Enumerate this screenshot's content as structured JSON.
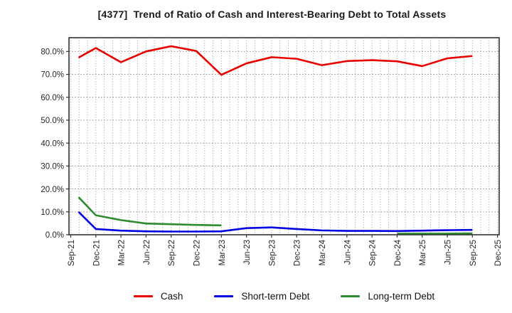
{
  "chart_data": {
    "type": "line",
    "title": "[4377]  Trend of Ratio of Cash and Interest-Bearing Debt to Total Assets",
    "x_tick_labels": [
      "Sep-21",
      "Dec-21",
      "Mar-22",
      "Jun-22",
      "Sep-22",
      "Dec-22",
      "Mar-23",
      "Jun-23",
      "Sep-23",
      "Dec-23",
      "Mar-24",
      "Jun-24",
      "Sep-24",
      "Dec-24",
      "Mar-25",
      "Jun-25",
      "Sep-25",
      "Dec-25"
    ],
    "y_tick_labels": [
      "0.0%",
      "10.0%",
      "20.0%",
      "30.0%",
      "40.0%",
      "50.0%",
      "60.0%",
      "70.0%",
      "80.0%"
    ],
    "y_tick_values": [
      0,
      10,
      20,
      30,
      40,
      50,
      60,
      70,
      80
    ],
    "ylim": [
      0,
      86
    ],
    "grid": {
      "horizontal": "10% steps dotted",
      "vertical": "monthly dotted"
    },
    "legend_position": "bottom",
    "axis_color": "#333333",
    "grid_color": "#8f8f8f",
    "series": [
      {
        "name": "Cash",
        "color": "#e80000",
        "values": [
          77.3,
          81.5,
          75.3,
          80.0,
          82.3,
          80.2,
          69.8,
          74.8,
          77.5,
          76.8,
          74.0,
          75.8,
          76.2,
          75.7,
          73.6,
          77.0,
          78.0
        ]
      },
      {
        "name": "Short-term Debt",
        "color": "#0000e0",
        "values": [
          10.0,
          2.5,
          1.8,
          1.5,
          1.4,
          1.4,
          1.5,
          2.9,
          3.2,
          2.5,
          1.9,
          1.7,
          1.7,
          1.6,
          1.8,
          2.0,
          2.1
        ]
      },
      {
        "name": "Long-term Debt",
        "color": "#2e8b2e",
        "values": [
          16.4,
          8.5,
          6.4,
          4.9,
          4.6,
          4.3,
          4.1,
          null,
          null,
          null,
          null,
          null,
          null,
          0.5,
          0.5,
          0.5,
          0.6
        ]
      }
    ]
  }
}
